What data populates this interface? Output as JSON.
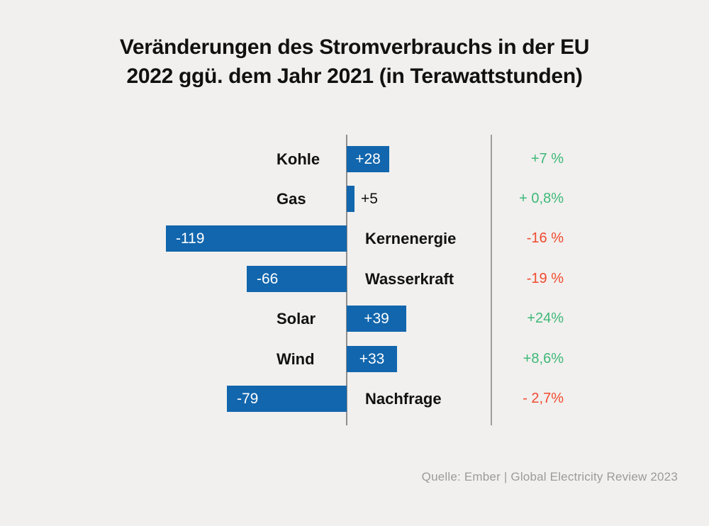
{
  "title": {
    "line1": "Veränderungen des Stromverbrauchs in der EU",
    "line2": "2022 ggü. dem Jahr 2021 (in Terawattstunden)"
  },
  "source": "Quelle: Ember | Global Electricity Review 2023",
  "colors": {
    "background": "#f1f0ee",
    "title": "#111111",
    "bar": "#1266ad",
    "bar_text": "#ffffff",
    "positive": "#3eb878",
    "negative": "#f04a2e",
    "axis": "#8e8e8e",
    "divider": "#a0a09e",
    "source_text": "#9b9b9b"
  },
  "chart_data": {
    "type": "bar",
    "orientation": "horizontal-diverging",
    "unit": "Terawattstunden (TWh)",
    "title": "Veränderungen des Stromverbrauchs in der EU 2022 ggü. dem Jahr 2021 (in Terawattstunden)",
    "categories": [
      "Kohle",
      "Gas",
      "Kernenergie",
      "Wasserkraft",
      "Solar",
      "Wind",
      "Nachfrage"
    ],
    "values": [
      28,
      5,
      -119,
      -66,
      39,
      33,
      -79
    ],
    "value_labels": [
      "+28",
      "+5",
      "-119",
      "-66",
      "+39",
      "+33",
      "-79"
    ],
    "pct_change": [
      7,
      0.8,
      -16,
      -19,
      24,
      8.6,
      -2.7
    ],
    "pct_labels": [
      "+7 %",
      "+ 0,8%",
      "-16 %",
      "-19 %",
      "+24%",
      "+8,6%",
      "- 2,7%"
    ],
    "baseline": 0,
    "xlim": [
      -125,
      95
    ],
    "grid": false,
    "legend": false,
    "source": "Quelle: Ember | Global Electricity Review 2023"
  }
}
